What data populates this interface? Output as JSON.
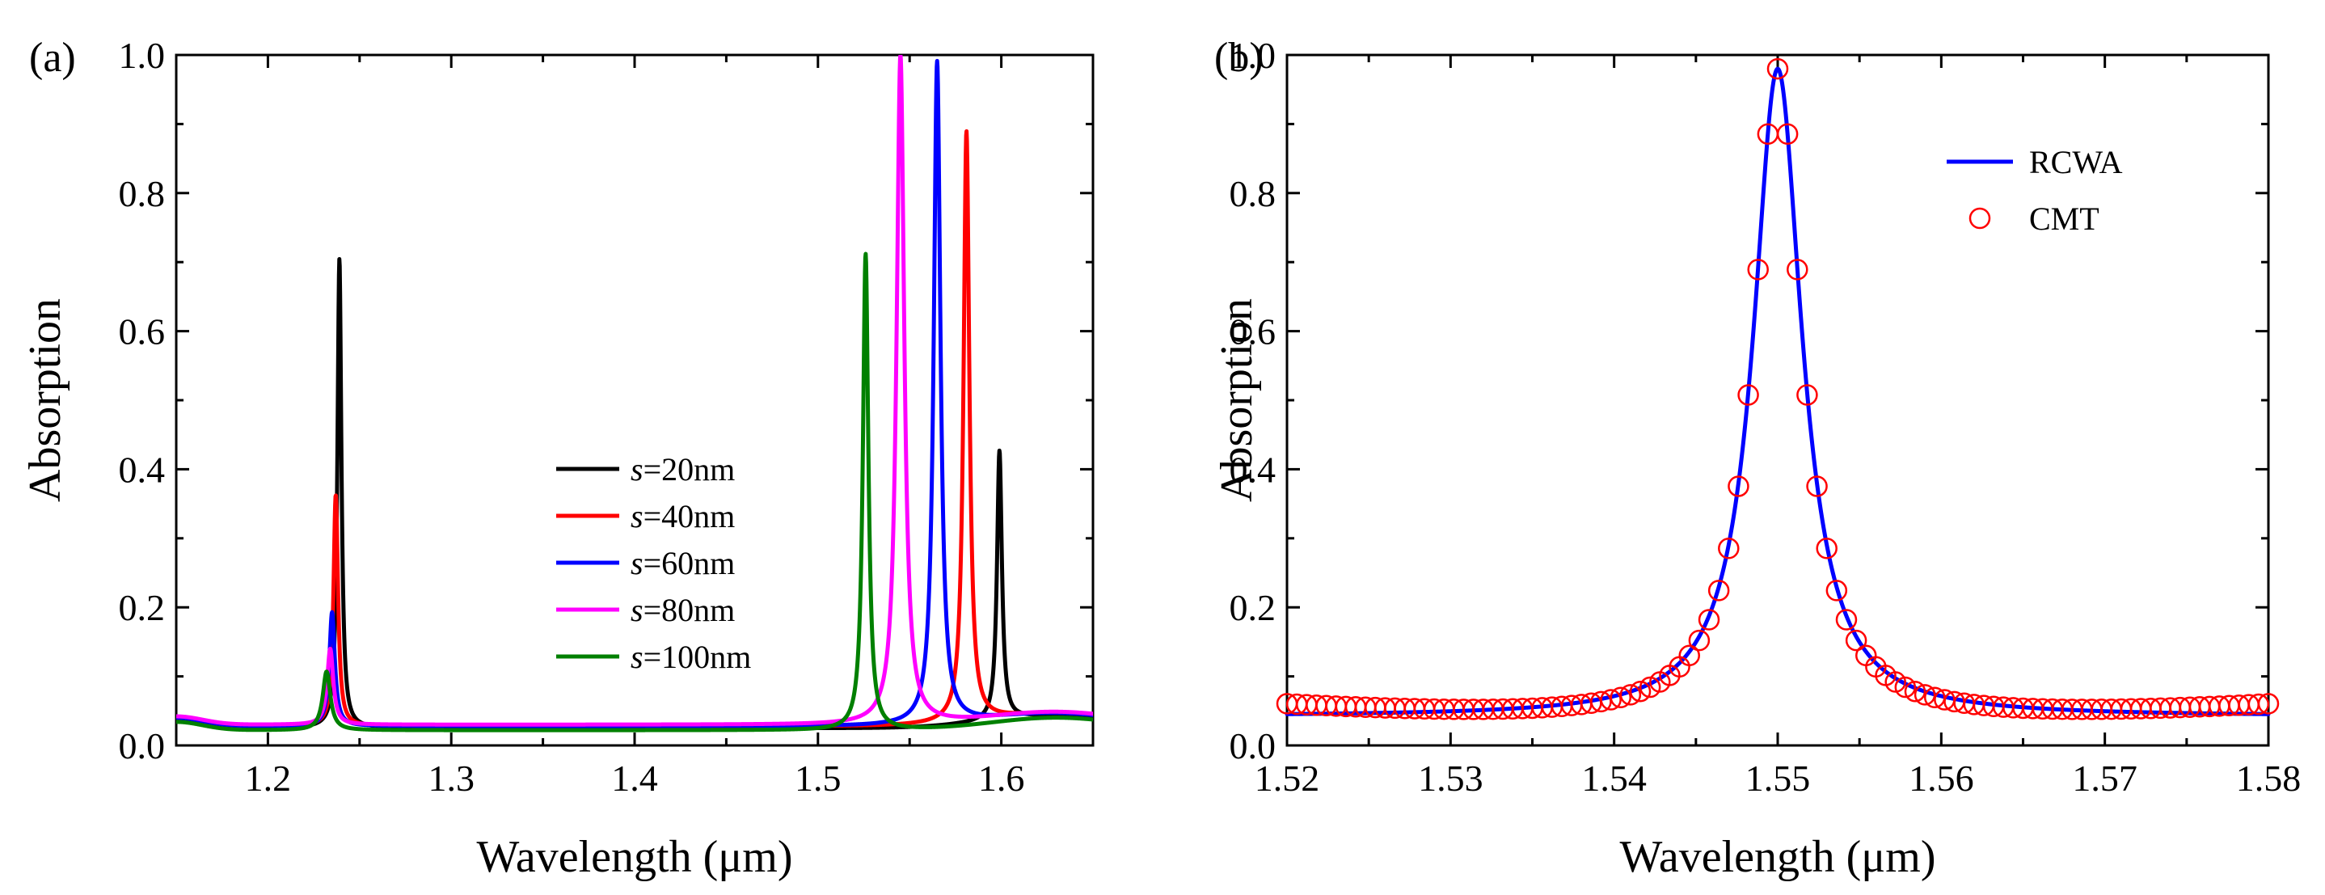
{
  "chart_data": [
    {
      "panel_label": "(a)",
      "type": "line",
      "xlabel": "Wavelength (μm)",
      "ylabel": "Absorption",
      "xlim": [
        1.15,
        1.65
      ],
      "ylim": [
        0.0,
        1.0
      ],
      "xticks": [
        1.2,
        1.3,
        1.4,
        1.5,
        1.6
      ],
      "xtick_labels": [
        "1.2",
        "1.3",
        "1.4",
        "1.5",
        "1.6"
      ],
      "yticks": [
        0.0,
        0.2,
        0.4,
        0.6,
        0.8,
        1.0
      ],
      "ytick_labels": [
        "0.0",
        "0.2",
        "0.4",
        "0.6",
        "0.8",
        "1.0"
      ],
      "legend_position": "center-right",
      "series": [
        {
          "name_italic": "s",
          "name_rest": "=20nm",
          "color": "#000000",
          "baseline": 0.025,
          "peaks": [
            {
              "x": 1.239,
              "height": 0.68,
              "width": 0.0013
            },
            {
              "x": 1.599,
              "height": 0.39,
              "width": 0.0016
            }
          ]
        },
        {
          "name_italic": "s",
          "name_rest": "=40nm",
          "color": "#ff0000",
          "baseline": 0.028,
          "peaks": [
            {
              "x": 1.237,
              "height": 0.335,
              "width": 0.0015
            },
            {
              "x": 1.581,
              "height": 0.855,
              "width": 0.0019
            }
          ]
        },
        {
          "name_italic": "s",
          "name_rest": "=60nm",
          "color": "#0000ff",
          "baseline": 0.028,
          "peaks": [
            {
              "x": 1.235,
              "height": 0.165,
              "width": 0.0018
            },
            {
              "x": 1.565,
              "height": 0.96,
              "width": 0.0022
            }
          ]
        },
        {
          "name_italic": "s",
          "name_rest": "=80nm",
          "color": "#ff00ff",
          "baseline": 0.03,
          "peaks": [
            {
              "x": 1.234,
              "height": 0.11,
              "width": 0.002
            },
            {
              "x": 1.545,
              "height": 0.97,
              "width": 0.0025
            }
          ]
        },
        {
          "name_italic": "s",
          "name_rest": "=100nm",
          "color": "#008000",
          "baseline": 0.022,
          "peaks": [
            {
              "x": 1.232,
              "height": 0.085,
              "width": 0.0025
            },
            {
              "x": 1.526,
              "height": 0.69,
              "width": 0.0018
            }
          ]
        }
      ]
    },
    {
      "panel_label": "(b)",
      "type": "line+scatter",
      "xlabel": "Wavelength (μm)",
      "ylabel": "Absorption",
      "xlim": [
        1.52,
        1.58
      ],
      "ylim": [
        0.0,
        1.0
      ],
      "xticks": [
        1.52,
        1.53,
        1.54,
        1.55,
        1.56,
        1.57,
        1.58
      ],
      "xtick_labels": [
        "1.52",
        "1.53",
        "1.54",
        "1.55",
        "1.56",
        "1.57",
        "1.58"
      ],
      "yticks": [
        0.0,
        0.2,
        0.4,
        0.6,
        0.8,
        1.0
      ],
      "ytick_labels": [
        "0.0",
        "0.2",
        "0.4",
        "0.6",
        "0.8",
        "1.0"
      ],
      "legend_position": "top-right",
      "series": [
        {
          "name": "RCWA",
          "kind": "line",
          "color": "#0000ff",
          "center": 1.55,
          "peak": 0.98,
          "width": 0.0018,
          "baseline": 0.042
        },
        {
          "name": "CMT",
          "kind": "scatter",
          "color": "#ff0000",
          "center": 1.55,
          "peak": 0.98,
          "width": 0.0018,
          "baseline": 0.035,
          "x_start": 1.52,
          "x_end": 1.58,
          "x_step": 0.0006
        }
      ]
    }
  ]
}
